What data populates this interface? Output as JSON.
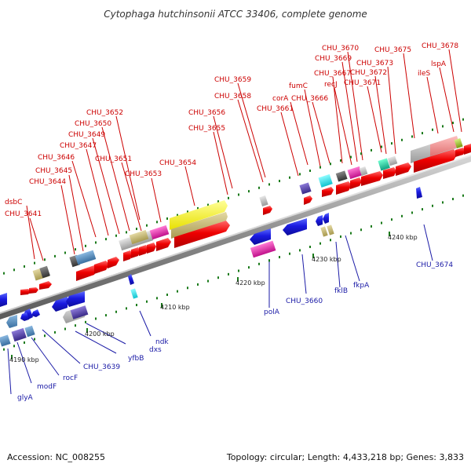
{
  "title": "Cytophaga hutchinsonii ATCC 33406, complete genome",
  "footer": {
    "accession": "Accession: NC_008255",
    "topology": "Topology: circular; Length: 4,433,218 bp; Genes: 3,833"
  },
  "colors": {
    "forward_label": "#cc0000",
    "reverse_label": "#1a1aa6",
    "backbone": "#8a8a8a",
    "tick": "#1a7a1a"
  },
  "ticks": [
    "4190 kbp",
    "4200 kbp",
    "4210 kbp",
    "4220 kbp",
    "4230 kbp",
    "4240 kbp"
  ],
  "forward_labels": [
    "dsbC",
    "CHU_3641",
    "CHU_3644",
    "CHU_3645",
    "CHU_3646",
    "CHU_3647",
    "CHU_3649",
    "CHU_3650",
    "CHU_3651",
    "CHU_3652",
    "CHU_3653",
    "CHU_3654",
    "CHU_3655",
    "CHU_3656",
    "CHU_3658",
    "CHU_3659",
    "CHU_3661",
    "corA",
    "fumC",
    "CHU_3666",
    "recJ",
    "CHU_3667",
    "CHU_3669",
    "CHU_3670",
    "CHU_3671",
    "CHU_3672",
    "CHU_3673",
    "CHU_3675",
    "ileS",
    "lspA",
    "CHU_3678"
  ],
  "reverse_labels": [
    "glyA",
    "modF",
    "rocF",
    "CHU_3639",
    "yfbB",
    "dxs",
    "ndk",
    "polA",
    "CHU_3660",
    "fklB",
    "fkpA",
    "CHU_3674"
  ]
}
